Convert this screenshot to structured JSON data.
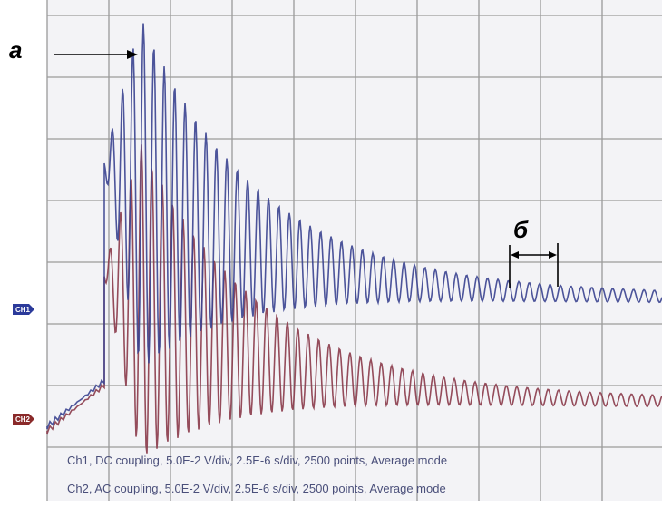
{
  "annotations": {
    "a": "а",
    "b": "б"
  },
  "channels": [
    {
      "label": "CH1",
      "status": "Ch1, DC coupling, 5.0E-2 V/div, 2.5E-6 s/div, 2500 points, Average mode"
    },
    {
      "label": "CH2",
      "status": "Ch2, AC coupling, 5.0E-2 V/div, 2.5E-6 s/div, 2500 points, Average mode"
    }
  ]
}
